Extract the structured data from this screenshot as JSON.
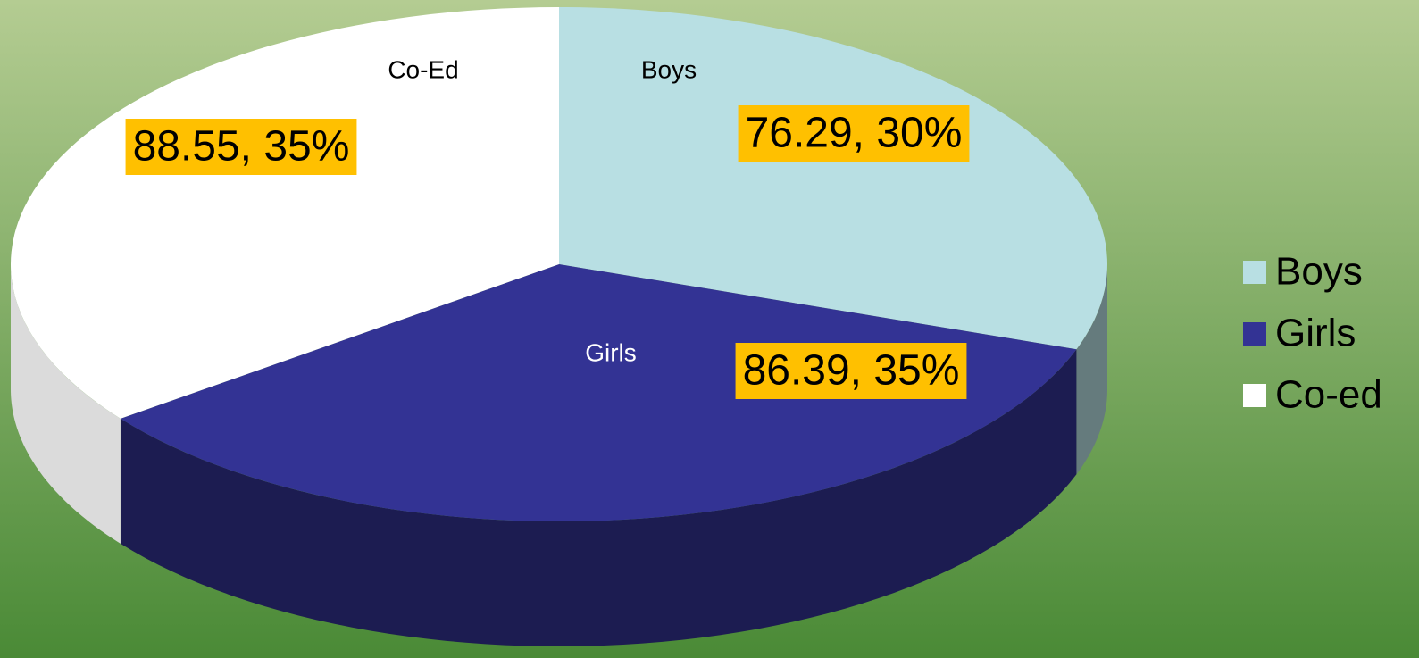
{
  "chart_data": {
    "type": "pie3d",
    "categories": [
      "Boys",
      "Girls",
      "Co-ed"
    ],
    "slice_labels": [
      "Boys",
      "Girls",
      "Co-Ed"
    ],
    "values": [
      76.29,
      86.39,
      88.55
    ],
    "value_labels": [
      "76.29, 30%",
      "86.39, 35%",
      "88.55, 35%"
    ],
    "colors": [
      "#b8dfe3",
      "#333394",
      "#ffffff"
    ],
    "legend": "right"
  }
}
